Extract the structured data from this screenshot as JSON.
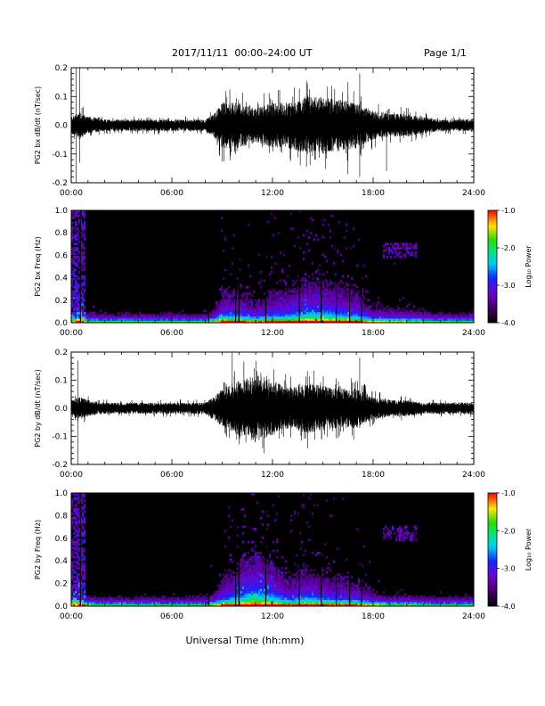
{
  "header": {
    "title": "2017/11/11  00:00–24:00 UT",
    "page_label": "Page 1/1"
  },
  "colorbar": {
    "label": "Log₁₀ Power",
    "ticks": [
      "-1.0",
      "-2.0",
      "-3.0",
      "-4.0"
    ],
    "range": [
      -4.0,
      -1.0
    ]
  },
  "chart_data": [
    {
      "type": "line",
      "ylabel": "PG2 bx dB/dt (nT/sec)",
      "xlabel": "",
      "x_unit": "hh:mm UT",
      "xlim": [
        "00:00",
        "24:00"
      ],
      "x_ticks": [
        "00:00",
        "06:00",
        "12:00",
        "18:00",
        "24:00"
      ],
      "ylim": [
        -0.2,
        0.2
      ],
      "y_ticks": [
        "0.2",
        "0.1",
        "0.0",
        "-0.1",
        "-0.2"
      ],
      "envelope": {
        "x_hours": [
          0,
          0.5,
          1,
          2,
          3,
          4,
          5,
          6,
          7,
          8,
          8.5,
          9,
          10,
          11,
          12,
          13,
          14,
          15,
          16,
          17,
          18,
          19,
          20,
          21,
          22,
          23,
          24
        ],
        "amplitude": [
          0.03,
          0.05,
          0.03,
          0.02,
          0.02,
          0.02,
          0.02,
          0.02,
          0.02,
          0.02,
          0.04,
          0.08,
          0.08,
          0.06,
          0.08,
          0.08,
          0.1,
          0.1,
          0.09,
          0.08,
          0.05,
          0.04,
          0.04,
          0.03,
          0.02,
          0.02,
          0.02
        ]
      },
      "spikes": [
        {
          "x_hours": 0.3,
          "min": -0.21,
          "max": 0.2
        },
        {
          "x_hours": 0.5,
          "min": -0.13,
          "max": 0.2
        },
        {
          "x_hours": 17.2,
          "min": -0.18,
          "max": 0.18
        },
        {
          "x_hours": 16.5,
          "min": -0.17,
          "max": 0.15
        },
        {
          "x_hours": 18.8,
          "min": -0.16,
          "max": 0.05
        },
        {
          "x_hours": 9.2,
          "min": -0.05,
          "max": 0.12
        }
      ]
    },
    {
      "type": "heatmap",
      "ylabel": "PG2 bx Freq (Hz)",
      "xlabel": "",
      "xlim": [
        "00:00",
        "24:00"
      ],
      "x_ticks": [
        "00:00",
        "06:00",
        "12:00",
        "18:00",
        "24:00"
      ],
      "ylim": [
        0.0,
        1.0
      ],
      "y_ticks": [
        "1.0",
        "0.8",
        "0.6",
        "0.4",
        "0.2",
        "0.0"
      ],
      "value": "log10 power"
    },
    {
      "type": "line",
      "ylabel": "PG2 by dB/dt (nT/sec)",
      "xlabel": "",
      "xlim": [
        "00:00",
        "24:00"
      ],
      "x_ticks": [
        "00:00",
        "06:00",
        "12:00",
        "18:00",
        "24:00"
      ],
      "ylim": [
        -0.2,
        0.2
      ],
      "y_ticks": [
        "0.2",
        "0.1",
        "0.0",
        "-0.1",
        "-0.2"
      ],
      "envelope": {
        "x_hours": [
          0,
          0.5,
          1,
          2,
          3,
          4,
          5,
          6,
          7,
          8,
          8.5,
          9,
          10,
          11,
          12,
          13,
          14,
          15,
          16,
          17,
          18,
          19,
          20,
          21,
          22,
          23,
          24
        ],
        "amplitude": [
          0.03,
          0.04,
          0.03,
          0.02,
          0.02,
          0.02,
          0.02,
          0.02,
          0.02,
          0.02,
          0.04,
          0.07,
          0.1,
          0.12,
          0.1,
          0.07,
          0.09,
          0.08,
          0.07,
          0.07,
          0.04,
          0.03,
          0.03,
          0.02,
          0.02,
          0.02,
          0.02
        ]
      },
      "spikes": [
        {
          "x_hours": 0.4,
          "min": -0.21,
          "max": 0.17
        },
        {
          "x_hours": 9.6,
          "min": -0.06,
          "max": 0.2
        },
        {
          "x_hours": 11.5,
          "min": -0.16,
          "max": 0.11
        },
        {
          "x_hours": 17.2,
          "min": -0.07,
          "max": 0.18
        }
      ]
    },
    {
      "type": "heatmap",
      "ylabel": "PG2 by Freq (Hz)",
      "xlabel": "Universal Time (hh:mm)",
      "xlim": [
        "00:00",
        "24:00"
      ],
      "x_ticks": [
        "00:00",
        "06:00",
        "12:00",
        "18:00",
        "24:00"
      ],
      "ylim": [
        0.0,
        1.0
      ],
      "y_ticks": [
        "1.0",
        "0.8",
        "0.6",
        "0.4",
        "0.2",
        "0.0"
      ],
      "value": "log10 power"
    }
  ]
}
